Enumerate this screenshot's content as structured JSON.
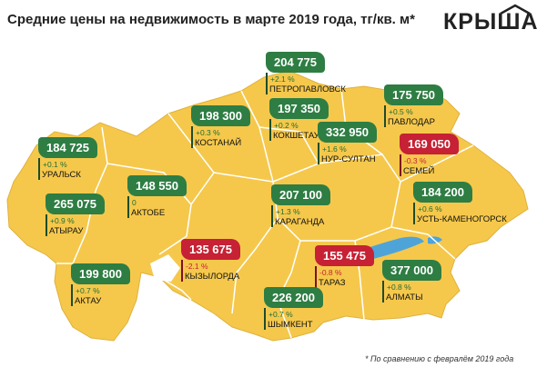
{
  "title": "Средние цены на недвижимость в марте 2019 года, тг/кв. м*",
  "logo": "КРЫША",
  "footnote": "* По сравнению с февралём 2019 года",
  "colors": {
    "map_fill": "#f5c84c",
    "border": "#ffffff",
    "positive": "#2e7d43",
    "negative": "#c62134",
    "water": "#4ea4d9"
  },
  "cities": [
    {
      "id": "petropavlovsk",
      "name": "ПЕТРОПАВЛОВСК",
      "price": "204 775",
      "change": "+2.1 %",
      "trend": "up"
    },
    {
      "id": "pavlodar",
      "name": "ПАВЛОДАР",
      "price": "175 750",
      "change": "+0.5 %",
      "trend": "up"
    },
    {
      "id": "kostanay",
      "name": "КОСТАНАЙ",
      "price": "198 300",
      "change": "+0.3 %",
      "trend": "up"
    },
    {
      "id": "kokshetau",
      "name": "КОКШЕТАУ",
      "price": "197 350",
      "change": "+0.2 %",
      "trend": "up"
    },
    {
      "id": "nursultan",
      "name": "НУР-СУЛТАН",
      "price": "332 950",
      "change": "+1.6 %",
      "trend": "up"
    },
    {
      "id": "semey",
      "name": "СЕМЕЙ",
      "price": "169 050",
      "change": "-0.3 %",
      "trend": "down"
    },
    {
      "id": "uralsk",
      "name": "УРАЛЬСК",
      "price": "184 725",
      "change": "+0.1 %",
      "trend": "up"
    },
    {
      "id": "aktobe",
      "name": "АКТОБЕ",
      "price": "148 550",
      "change": "0",
      "trend": "up"
    },
    {
      "id": "atyrau",
      "name": "АТЫРАУ",
      "price": "265 075",
      "change": "+0.9 %",
      "trend": "up"
    },
    {
      "id": "karaganda",
      "name": "КАРАГАНДА",
      "price": "207 100",
      "change": "+1.3 %",
      "trend": "up"
    },
    {
      "id": "ustkamenogorsk",
      "name": "УСТЬ-КАМЕНОГОРСК",
      "price": "184 200",
      "change": "+0.6 %",
      "trend": "up"
    },
    {
      "id": "kyzylorda",
      "name": "КЫЗЫЛОРДА",
      "price": "135 675",
      "change": "-2.1 %",
      "trend": "down"
    },
    {
      "id": "taraz",
      "name": "ТАРАЗ",
      "price": "155 475",
      "change": "-0.8 %",
      "trend": "down"
    },
    {
      "id": "aktau",
      "name": "АКТАУ",
      "price": "199 800",
      "change": "+0.7 %",
      "trend": "up"
    },
    {
      "id": "almaty",
      "name": "АЛМАТЫ",
      "price": "377 000",
      "change": "+0.8 %",
      "trend": "up"
    },
    {
      "id": "shymkent",
      "name": "ШЫМКЕНТ",
      "price": "226 200",
      "change": "+0.7 %",
      "trend": "up"
    }
  ]
}
